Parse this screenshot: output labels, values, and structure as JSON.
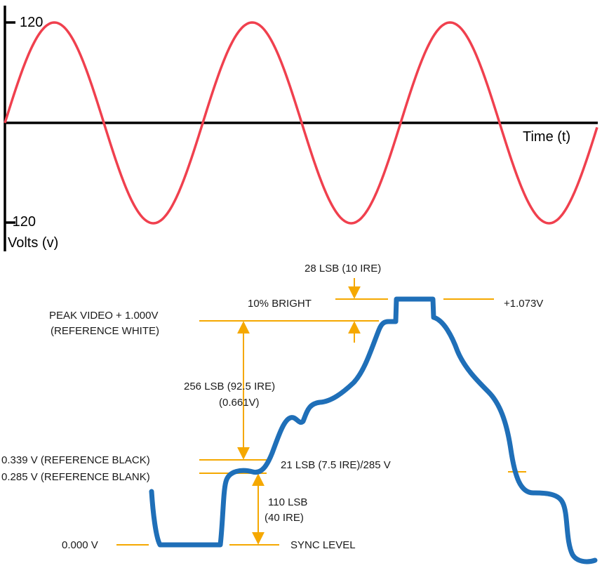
{
  "sine_plot": {
    "y_max_label": "120",
    "y_min_label": "-120",
    "x_axis_label": "Time (t)",
    "y_axis_label": "Volts (v)",
    "y_max": 120,
    "y_min": -120,
    "cycles": 3,
    "wave_color": "#f0404e"
  },
  "video_signal": {
    "line_color": "#1f6fb8",
    "reference_color": "#f5a800",
    "labels": {
      "top_step": "28 LSB (10 IRE)",
      "ten_percent_bright": "10% BRIGHT",
      "plus_1073": "+1.073V",
      "peak_video_line1": "PEAK VIDEO + 1.000V",
      "peak_video_line2": "(REFERENCE WHITE)",
      "range_line1": "256 LSB (92.5 IRE)",
      "range_line2": "(0.661V)",
      "ref_black": "0.339 V (REFERENCE BLACK)",
      "ref_blank": "0.285 V (REFERENCE BLANK)",
      "setup": "21 LSB (7.5 IRE)/285 V",
      "sync_line1": "110 LSB",
      "sync_line2": "(40 IRE)",
      "zero_v": "0.000 V",
      "sync_level": "SYNC LEVEL"
    }
  }
}
